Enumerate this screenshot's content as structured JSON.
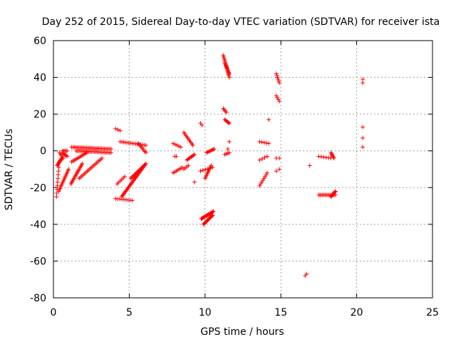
{
  "chart_data": {
    "type": "scatter",
    "title": "Day 252 of 2015, Sidereal Day-to-day VTEC variation (SDTVAR) for receiver ista",
    "xlabel": "GPS time / hours",
    "ylabel": "SDTVAR / TECUs",
    "xlim": [
      0,
      25
    ],
    "ylim": [
      -80,
      60
    ],
    "xticks": [
      0,
      5,
      10,
      15,
      20,
      25
    ],
    "yticks": [
      -80,
      -60,
      -40,
      -20,
      0,
      20,
      40,
      60
    ],
    "xtick_labels": [
      "0",
      "5",
      "10",
      "15",
      "20",
      "25"
    ],
    "ytick_labels": [
      "-80",
      "-60",
      "-40",
      "-20",
      "0",
      "20",
      "40",
      "60"
    ],
    "grid": true,
    "marker": "+",
    "color": "#ff0000",
    "segments": [
      {
        "x": [
          0.2,
          0.35
        ],
        "y": [
          -25,
          -9
        ]
      },
      {
        "x": [
          0.25,
          0.55
        ],
        "y": [
          -8,
          -4
        ]
      },
      {
        "x": [
          0.4,
          0.65
        ],
        "y": [
          -1,
          -4
        ]
      },
      {
        "x": [
          0.6,
          0.9
        ],
        "y": [
          -1,
          -3
        ]
      },
      {
        "x": [
          0.6,
          0.9
        ],
        "y": [
          0,
          0
        ]
      },
      {
        "x": [
          0.35,
          1.0
        ],
        "y": [
          -22,
          -10
        ]
      },
      {
        "x": [
          1.15,
          1.9
        ],
        "y": [
          -18,
          -7
        ]
      },
      {
        "x": [
          1.2,
          2.2
        ],
        "y": [
          -6,
          -1
        ]
      },
      {
        "x": [
          1.2,
          3.8
        ],
        "y": [
          2,
          1
        ]
      },
      {
        "x": [
          1.5,
          3.8
        ],
        "y": [
          0,
          -1
        ]
      },
      {
        "x": [
          1.7,
          3.2
        ],
        "y": [
          -15,
          -4
        ]
      },
      {
        "x": [
          4.1,
          4.4
        ],
        "y": [
          12,
          11
        ]
      },
      {
        "x": [
          4.4,
          6.1
        ],
        "y": [
          5,
          3
        ]
      },
      {
        "x": [
          5.6,
          6.1
        ],
        "y": [
          4,
          -1
        ]
      },
      {
        "x": [
          4.1,
          5.2
        ],
        "y": [
          -26,
          -27
        ]
      },
      {
        "x": [
          4.5,
          6.0
        ],
        "y": [
          -25,
          -8
        ]
      },
      {
        "x": [
          4.2,
          4.7
        ],
        "y": [
          -18,
          -14
        ]
      },
      {
        "x": [
          5.1,
          6.1
        ],
        "y": [
          -15,
          -7
        ]
      },
      {
        "x": [
          7.9,
          8.4
        ],
        "y": [
          4,
          2
        ]
      },
      {
        "x": [
          7.9,
          8.5
        ],
        "y": [
          -12,
          -9
        ]
      },
      {
        "x": [
          8.0,
          8.1
        ],
        "y": [
          -3,
          -3
        ]
      },
      {
        "x": [
          8.6,
          9.2
        ],
        "y": [
          10,
          3
        ]
      },
      {
        "x": [
          8.6,
          8.9
        ],
        "y": [
          -10,
          -8
        ]
      },
      {
        "x": [
          8.8,
          9.3
        ],
        "y": [
          -5,
          -2
        ]
      },
      {
        "x": [
          9.3,
          9.3
        ],
        "y": [
          -17,
          -17
        ]
      },
      {
        "x": [
          9.7,
          9.8
        ],
        "y": [
          15,
          14
        ]
      },
      {
        "x": [
          9.75,
          10.55
        ],
        "y": [
          -37,
          -33
        ]
      },
      {
        "x": [
          9.9,
          10.5
        ],
        "y": [
          -40,
          -35
        ]
      },
      {
        "x": [
          9.7,
          10.5
        ],
        "y": [
          -11,
          -9
        ]
      },
      {
        "x": [
          10.0,
          10.4
        ],
        "y": [
          -15,
          -8
        ]
      },
      {
        "x": [
          10.1,
          10.6
        ],
        "y": [
          -1,
          1
        ]
      },
      {
        "x": [
          11.2,
          11.6
        ],
        "y": [
          52,
          40
        ]
      },
      {
        "x": [
          11.3,
          11.6
        ],
        "y": [
          48,
          42
        ]
      },
      {
        "x": [
          11.2,
          11.4
        ],
        "y": [
          23,
          21
        ]
      },
      {
        "x": [
          11.3,
          11.6
        ],
        "y": [
          17,
          15
        ]
      },
      {
        "x": [
          11.6,
          11.6
        ],
        "y": [
          5,
          5
        ]
      },
      {
        "x": [
          11.5,
          11.6
        ],
        "y": [
          1,
          1
        ]
      },
      {
        "x": [
          11.3,
          11.6
        ],
        "y": [
          -2,
          -1
        ]
      },
      {
        "x": [
          13.6,
          14.2
        ],
        "y": [
          5,
          4
        ]
      },
      {
        "x": [
          14.2,
          14.2
        ],
        "y": [
          17,
          17
        ]
      },
      {
        "x": [
          13.6,
          14.1
        ],
        "y": [
          -5,
          -3
        ]
      },
      {
        "x": [
          13.6,
          14.1
        ],
        "y": [
          -19,
          -12
        ]
      },
      {
        "x": [
          14.7,
          14.9
        ],
        "y": [
          42,
          37
        ]
      },
      {
        "x": [
          14.7,
          14.9
        ],
        "y": [
          30,
          27
        ]
      },
      {
        "x": [
          14.7,
          14.9
        ],
        "y": [
          -4,
          -4
        ]
      },
      {
        "x": [
          14.7,
          14.9
        ],
        "y": [
          -11,
          -10
        ]
      },
      {
        "x": [
          16.6,
          16.7
        ],
        "y": [
          -68,
          -67
        ]
      },
      {
        "x": [
          16.9,
          16.9
        ],
        "y": [
          -8,
          -8
        ]
      },
      {
        "x": [
          17.5,
          18.6
        ],
        "y": [
          -24,
          -24
        ]
      },
      {
        "x": [
          17.5,
          18.3
        ],
        "y": [
          -3,
          -4
        ]
      },
      {
        "x": [
          18.3,
          18.5
        ],
        "y": [
          -1,
          -4
        ]
      },
      {
        "x": [
          18.3,
          18.6
        ],
        "y": [
          -25,
          -22
        ]
      },
      {
        "x": [
          20.4,
          20.4
        ],
        "y": [
          39,
          37
        ]
      },
      {
        "x": [
          20.4,
          20.4
        ],
        "y": [
          13,
          13
        ]
      },
      {
        "x": [
          20.4,
          20.4
        ],
        "y": [
          7,
          7
        ]
      },
      {
        "x": [
          20.4,
          20.4
        ],
        "y": [
          2,
          2
        ]
      }
    ],
    "points_per_segment": [
      9,
      10,
      5,
      6,
      5,
      16,
      16,
      12,
      30,
      26,
      18,
      3,
      16,
      8,
      9,
      30,
      6,
      18,
      5,
      7,
      2,
      10,
      4,
      8,
      1,
      2,
      16,
      14,
      6,
      10,
      8,
      16,
      10,
      4,
      6,
      1,
      1,
      4,
      5,
      1,
      4,
      8,
      6,
      4,
      2,
      2,
      2,
      1,
      14,
      6,
      6,
      8,
      2,
      1,
      1,
      1
    ]
  }
}
